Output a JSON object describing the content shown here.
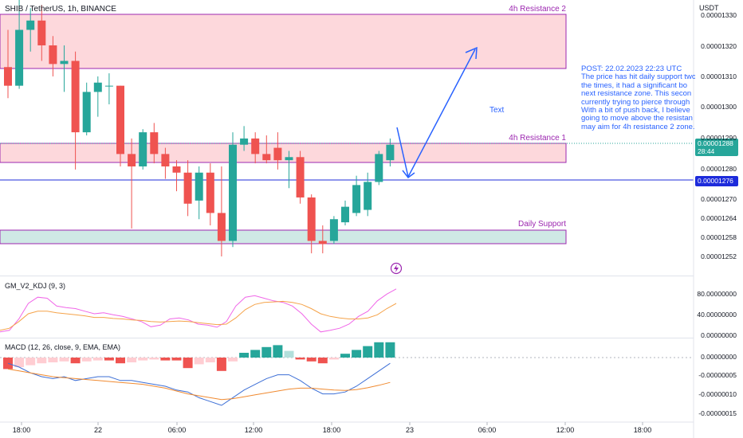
{
  "header": {
    "symbol": "SHIB / TetherUS, 1h, BINANCE",
    "currency": "USDT"
  },
  "annotations": {
    "zone_top": "4h Resistance 2",
    "zone_mid": "4h Resistance 1",
    "zone_bottom": "Daily Support",
    "text_note": "Text",
    "post_lines": [
      "POST: 22.02.2023 22:23 UTC",
      "The price has hit daily support two",
      "the times, it had  a significant bo",
      "next resistance zone. This secon",
      "currently trying to pierce through",
      "With a bit of push back, I believe",
      "going to move above the resistan",
      "may aim for 4h resistance 2 zone."
    ]
  },
  "price_badges": {
    "current_price": "0.00001288",
    "countdown": "28:44",
    "line_price": "0.00001276"
  },
  "colors": {
    "up": "#26a69a",
    "down": "#ef5350",
    "zone_resistance_fill": "#fdd8dc",
    "zone_support_fill": "#cfe9e5",
    "zone_border": "#9c27b0",
    "arrow": "#2962ff",
    "kdj_k": "#f066e8",
    "kdj_d": "#f5a34a",
    "macd_line": "#3d6fd6",
    "signal_line": "#f08a30",
    "hist_up_strong": "#26a69a",
    "hist_up_weak": "#b2dfdb",
    "hist_down_strong": "#ef5350",
    "hist_down_weak": "#ffcdd2"
  },
  "chart_data": [
    {
      "type": "candlestick",
      "price_ticks": [
        "0.00001330",
        "0.00001320",
        "0.00001310",
        "0.00001300",
        "0.00001290",
        "0.00001280",
        "0.00001270",
        "0.00001264",
        "0.00001258",
        "0.00001252"
      ],
      "time_ticks": [
        "18:00",
        "22",
        "06:00",
        "12:00",
        "18:00",
        "23",
        "06:00",
        "12:00",
        "18:00"
      ],
      "candles": [
        {
          "o": 1.313e-05,
          "h": 1.325e-05,
          "l": 1.303e-05,
          "c": 1.307e-05
        },
        {
          "o": 1.307e-05,
          "h": 1.335e-05,
          "l": 1.306e-05,
          "c": 1.325e-05
        },
        {
          "o": 1.325e-05,
          "h": 1.332e-05,
          "l": 1.318e-05,
          "c": 1.328e-05
        },
        {
          "o": 1.328e-05,
          "h": 1.333e-05,
          "l": 1.315e-05,
          "c": 1.32e-05
        },
        {
          "o": 1.32e-05,
          "h": 1.323e-05,
          "l": 1.31e-05,
          "c": 1.314e-05
        },
        {
          "o": 1.314e-05,
          "h": 1.32e-05,
          "l": 1.305e-05,
          "c": 1.315e-05
        },
        {
          "o": 1.315e-05,
          "h": 1.318e-05,
          "l": 1.28e-05,
          "c": 1.292e-05
        },
        {
          "o": 1.292e-05,
          "h": 1.308e-05,
          "l": 1.291e-05,
          "c": 1.305e-05
        },
        {
          "o": 1.305e-05,
          "h": 1.31e-05,
          "l": 1.297e-05,
          "c": 1.308e-05
        },
        {
          "o": 1.307e-05,
          "h": 1.311e-05,
          "l": 1.301e-05,
          "c": 1.307e-05
        },
        {
          "o": 1.307e-05,
          "h": 1.307e-05,
          "l": 1.281e-05,
          "c": 1.285e-05
        },
        {
          "o": 1.285e-05,
          "h": 1.29e-05,
          "l": 1.261e-05,
          "c": 1.281e-05
        },
        {
          "o": 1.281e-05,
          "h": 1.293e-05,
          "l": 1.28e-05,
          "c": 1.292e-05
        },
        {
          "o": 1.292e-05,
          "h": 1.295e-05,
          "l": 1.282e-05,
          "c": 1.285e-05
        },
        {
          "o": 1.285e-05,
          "h": 1.287e-05,
          "l": 1.277e-05,
          "c": 1.281e-05
        },
        {
          "o": 1.281e-05,
          "h": 1.283e-05,
          "l": 1.273e-05,
          "c": 1.279e-05
        },
        {
          "o": 1.279e-05,
          "h": 1.283e-05,
          "l": 1.265e-05,
          "c": 1.269e-05
        },
        {
          "o": 1.27e-05,
          "h": 1.281e-05,
          "l": 1.264e-05,
          "c": 1.279e-05
        },
        {
          "o": 1.279e-05,
          "h": 1.282e-05,
          "l": 1.262e-05,
          "c": 1.266e-05
        },
        {
          "o": 1.266e-05,
          "h": 1.281e-05,
          "l": 1.252e-05,
          "c": 1.257e-05
        },
        {
          "o": 1.257e-05,
          "h": 1.292e-05,
          "l": 1.255e-05,
          "c": 1.288e-05
        },
        {
          "o": 1.288e-05,
          "h": 1.294e-05,
          "l": 1.286e-05,
          "c": 1.29e-05
        },
        {
          "o": 1.29e-05,
          "h": 1.292e-05,
          "l": 1.282e-05,
          "c": 1.285e-05
        },
        {
          "o": 1.285e-05,
          "h": 1.291e-05,
          "l": 1.282e-05,
          "c": 1.283e-05
        },
        {
          "o": 1.287e-05,
          "h": 1.292e-05,
          "l": 1.28e-05,
          "c": 1.283e-05
        },
        {
          "o": 1.283e-05,
          "h": 1.286e-05,
          "l": 1.274e-05,
          "c": 1.284e-05
        },
        {
          "o": 1.284e-05,
          "h": 1.286e-05,
          "l": 1.269e-05,
          "c": 1.271e-05
        },
        {
          "o": 1.271e-05,
          "h": 1.272e-05,
          "l": 1.253e-05,
          "c": 1.257e-05
        },
        {
          "o": 1.257e-05,
          "h": 1.262e-05,
          "l": 1.253e-05,
          "c": 1.256e-05
        },
        {
          "o": 1.257e-05,
          "h": 1.265e-05,
          "l": 1.256e-05,
          "c": 1.264e-05
        },
        {
          "o": 1.263e-05,
          "h": 1.27e-05,
          "l": 1.262e-05,
          "c": 1.268e-05
        },
        {
          "o": 1.266e-05,
          "h": 1.278e-05,
          "l": 1.265e-05,
          "c": 1.275e-05
        },
        {
          "o": 1.267e-05,
          "h": 1.279e-05,
          "l": 1.265e-05,
          "c": 1.276e-05
        },
        {
          "o": 1.276e-05,
          "h": 1.286e-05,
          "l": 1.275e-05,
          "c": 1.285e-05
        },
        {
          "o": 1.283e-05,
          "h": 1.29e-05,
          "l": 1.281e-05,
          "c": 1.288e-05
        }
      ]
    },
    {
      "type": "line",
      "title": "GM_V2_KDJ (9, 3)",
      "y_ticks": [
        "80.00000000",
        "40.00000000",
        "0.00000000"
      ],
      "series": [
        {
          "values": [
            5,
            8,
            30,
            60,
            72,
            70,
            55,
            52,
            50,
            45,
            40,
            42,
            38,
            35,
            30,
            25,
            15,
            18,
            30,
            32,
            28,
            20,
            18,
            14,
            25,
            55,
            72,
            75,
            70,
            65,
            62,
            55,
            40,
            20,
            5,
            8,
            12,
            20,
            35,
            45,
            65,
            78,
            88
          ]
        },
        {
          "values": [
            8,
            12,
            25,
            40,
            45,
            45,
            42,
            40,
            38,
            36,
            33,
            33,
            31,
            30,
            28,
            27,
            25,
            24,
            25,
            26,
            25,
            23,
            21,
            19,
            20,
            32,
            48,
            58,
            62,
            63,
            64,
            62,
            58,
            50,
            40,
            35,
            32,
            30,
            30,
            32,
            38,
            50,
            60
          ]
        }
      ]
    },
    {
      "type": "bar",
      "title": "MACD (12, 26, close, 9, EMA, EMA)",
      "y_ticks": [
        "0.00000000",
        "-0.00000005",
        "-0.00000010",
        "-0.00000015"
      ],
      "histogram": [
        -1.2,
        -1.0,
        -0.8,
        -0.6,
        -0.5,
        -0.4,
        -0.6,
        -0.4,
        -0.3,
        -0.3,
        -0.6,
        -0.5,
        -0.3,
        -0.2,
        -0.3,
        -0.3,
        -1.1,
        -0.7,
        -0.5,
        -1.4,
        -0.4,
        0.5,
        0.8,
        1.1,
        1.3,
        0.7,
        -0.2,
        -0.4,
        -0.6,
        -0.2,
        0.4,
        0.8,
        1.2,
        1.6,
        1.6
      ],
      "macd": [
        -0.3,
        -0.5,
        -0.8,
        -1.0,
        -1.1,
        -1.0,
        -1.2,
        -1.1,
        -1.0,
        -1.0,
        -1.2,
        -1.2,
        -1.3,
        -1.4,
        -1.5,
        -1.7,
        -1.8,
        -2.1,
        -2.3,
        -2.5,
        -2.1,
        -1.7,
        -1.4,
        -1.1,
        -0.9,
        -0.9,
        -1.2,
        -1.6,
        -1.9,
        -1.9,
        -1.8,
        -1.5,
        -1.1,
        -0.7,
        -0.3
      ],
      "signal": [
        -0.6,
        -0.7,
        -0.8,
        -0.9,
        -1.0,
        -1.05,
        -1.1,
        -1.15,
        -1.2,
        -1.25,
        -1.3,
        -1.35,
        -1.4,
        -1.5,
        -1.6,
        -1.75,
        -1.9,
        -2.0,
        -2.1,
        -2.2,
        -2.15,
        -2.05,
        -1.95,
        -1.85,
        -1.75,
        -1.65,
        -1.6,
        -1.6,
        -1.65,
        -1.7,
        -1.72,
        -1.68,
        -1.58,
        -1.45,
        -1.3
      ]
    }
  ]
}
